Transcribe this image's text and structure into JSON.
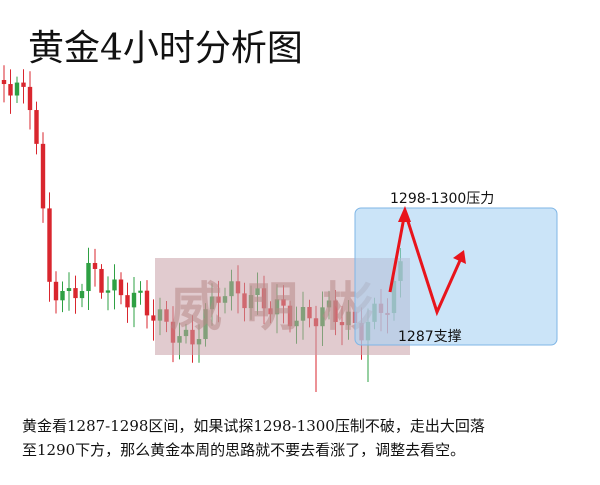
{
  "chart_data": {
    "type": "candlestick",
    "title": "黄金4小时分析图",
    "annotations": [
      "1298-1300压力",
      "1287支撑"
    ],
    "watermark": "威明彬",
    "caption": [
      "黄金看1287-1298区间，如果试探1298-1300压制不破，走出大回落",
      "至1290下方，那么黄金本周的思路就不要去看涨了，调整去看空。"
    ]
  }
}
